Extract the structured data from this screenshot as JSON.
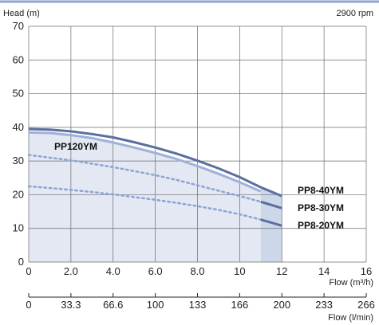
{
  "chart_data": {
    "type": "line",
    "ylabel": "Head  (m)",
    "speed_label": "2900  rpm",
    "xlabel": "Flow  (m³/h)",
    "x2label": "Flow   (l/min)",
    "xlim": [
      0,
      16
    ],
    "ylim": [
      0,
      70
    ],
    "x_ticks": [
      "0",
      "2.0",
      "4.0",
      "6.0",
      "8.0",
      "10",
      "12",
      "14",
      "16"
    ],
    "y_ticks": [
      "0",
      "10",
      "20",
      "30",
      "40",
      "50",
      "60",
      "70"
    ],
    "x2_ticks": [
      "0",
      "33.3",
      "66.6",
      "100",
      "133",
      "166",
      "200",
      "233",
      "266"
    ],
    "grid": true,
    "shaded_region": {
      "label": "PP120YM",
      "curve": {
        "x": [
          0,
          1,
          2,
          3,
          4,
          5,
          6,
          7,
          8,
          9,
          10,
          11
        ],
        "y": [
          38.5,
          38.3,
          37.7,
          36.8,
          35.5,
          34,
          32.4,
          30.6,
          28.5,
          26.2,
          23.7,
          21
        ]
      },
      "x_end": 11,
      "colors": {
        "fill": "#e3e8f3",
        "fill_highlight": "#cdd7ea"
      }
    },
    "series": [
      {
        "name": "PP8-40YM",
        "x": [
          0,
          1,
          2,
          3,
          4,
          5,
          6,
          7,
          8,
          9,
          10,
          11,
          12
        ],
        "y": [
          39.5,
          39.3,
          38.8,
          38,
          37,
          35.6,
          34,
          32.2,
          30.1,
          27.8,
          25.2,
          22.2,
          19.6
        ],
        "solid_from": 0,
        "color": "#5a6fa0"
      },
      {
        "name": "PP8-30YM",
        "x": [
          0,
          1,
          2,
          3,
          4,
          5,
          6,
          7,
          8,
          9,
          10,
          11,
          12
        ],
        "y": [
          31.8,
          31,
          30.2,
          29.2,
          28.2,
          27,
          25.8,
          24.4,
          22.8,
          21.2,
          19.6,
          17.9,
          16
        ],
        "solid_from": 11,
        "color": "#5a6fa0",
        "dashed_color": "#8ea4d4"
      },
      {
        "name": "PP8-20YM",
        "x": [
          0,
          1,
          2,
          3,
          4,
          5,
          6,
          7,
          8,
          9,
          10,
          11,
          12
        ],
        "y": [
          22.5,
          22,
          21.4,
          20.8,
          20.1,
          19.3,
          18.5,
          17.6,
          16.6,
          15.5,
          14.2,
          12.6,
          10.8
        ],
        "solid_from": 11,
        "color": "#5a6fa0",
        "dashed_color": "#8ea4d4"
      }
    ]
  }
}
